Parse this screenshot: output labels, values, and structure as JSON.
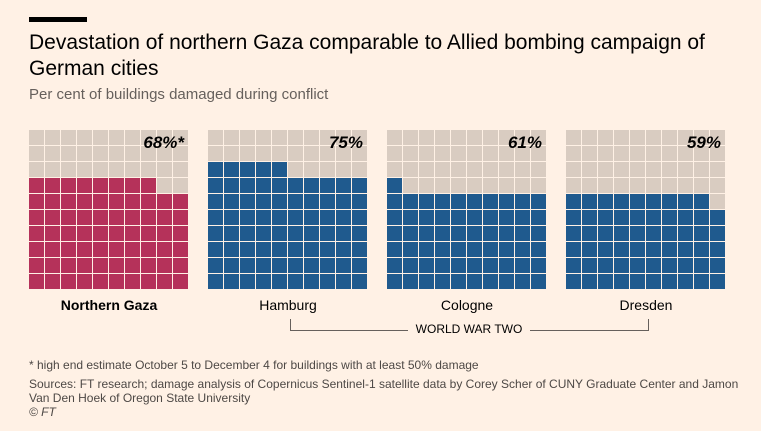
{
  "title": "Devastation of northern Gaza comparable to Allied bombing campaign of German cities",
  "subtitle": "Per cent of buildings damaged during conflict",
  "colors": {
    "background": "#fff1e5",
    "empty": "#d9ccc1",
    "gaza": "#b5325a",
    "ww2": "#1f5a8e"
  },
  "chart_data": {
    "type": "waffle",
    "grid": [
      10,
      10
    ],
    "series": [
      {
        "name": "Northern Gaza",
        "value": 68,
        "label": "68%*",
        "color": "#b5325a"
      },
      {
        "name": "Hamburg",
        "value": 75,
        "label": "75%",
        "color": "#1f5a8e"
      },
      {
        "name": "Cologne",
        "value": 61,
        "label": "61%",
        "color": "#1f5a8e"
      },
      {
        "name": "Dresden",
        "value": 59,
        "label": "59%",
        "color": "#1f5a8e"
      }
    ],
    "group_label": "WORLD WAR TWO"
  },
  "footnote": "* high end estimate October 5 to December 4 for buildings with at least 50% damage",
  "sources": "Sources: FT research; damage analysis of Copernicus Sentinel-1 satellite data by Corey Scher of CUNY Graduate Center and Jamon Van Den Hoek of Oregon State University",
  "copyright": "© FT"
}
